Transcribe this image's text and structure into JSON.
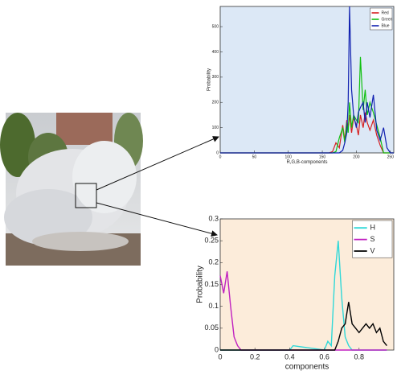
{
  "chart_data": [
    {
      "type": "line",
      "xlabel": "R,G,B-components",
      "ylabel": "Probability",
      "x": [
        0,
        150,
        160,
        165,
        170,
        175,
        180,
        183,
        186,
        188,
        190,
        193,
        196,
        200,
        203,
        206,
        210,
        213,
        216,
        220,
        225,
        230,
        235,
        240,
        245,
        250,
        255
      ],
      "series": [
        {
          "name": "Red",
          "color": "#d62020",
          "values": [
            0,
            0,
            0,
            5,
            40,
            20,
            110,
            50,
            130,
            100,
            150,
            80,
            140,
            110,
            70,
            150,
            100,
            160,
            120,
            90,
            130,
            70,
            30,
            0,
            0,
            0,
            0
          ]
        },
        {
          "name": "Green",
          "color": "#10c010",
          "values": [
            0,
            0,
            0,
            0,
            5,
            60,
            100,
            40,
            120,
            80,
            200,
            100,
            150,
            130,
            120,
            380,
            170,
            250,
            150,
            200,
            160,
            110,
            60,
            0,
            0,
            0,
            0
          ]
        },
        {
          "name": "Blue",
          "color": "#1020b0",
          "values": [
            0,
            0,
            0,
            0,
            0,
            0,
            10,
            40,
            80,
            200,
            580,
            250,
            150,
            100,
            160,
            180,
            200,
            120,
            200,
            140,
            230,
            90,
            50,
            100,
            20,
            0,
            0
          ]
        }
      ],
      "xlim": [
        0,
        255
      ],
      "xticks": [
        0,
        50,
        100,
        150,
        200,
        250
      ],
      "ylim": [
        0,
        580
      ],
      "yticks": [
        0,
        100,
        200,
        300,
        400,
        500
      ],
      "background": "#dce8f6",
      "legend": "upper right"
    },
    {
      "type": "line",
      "xlabel": "components",
      "ylabel": "Probability",
      "x": [
        0,
        0.02,
        0.04,
        0.06,
        0.08,
        0.1,
        0.12,
        0.2,
        0.4,
        0.42,
        0.6,
        0.62,
        0.64,
        0.66,
        0.68,
        0.7,
        0.72,
        0.74,
        0.76,
        0.78,
        0.8,
        0.82,
        0.84,
        0.86,
        0.88,
        0.9,
        0.92,
        0.94,
        0.96
      ],
      "series": [
        {
          "name": "H",
          "color": "#30d8d8",
          "values": [
            0,
            0,
            0,
            0,
            0,
            0,
            0,
            0,
            0,
            0.01,
            0,
            0.02,
            0.01,
            0.17,
            0.25,
            0.12,
            0.03,
            0.01,
            0,
            0,
            0,
            0,
            0,
            0,
            0,
            0,
            0,
            0,
            0
          ]
        },
        {
          "name": "S",
          "color": "#c020c0",
          "values": [
            0.17,
            0.13,
            0.18,
            0.1,
            0.03,
            0.01,
            0,
            0,
            0,
            0,
            0,
            0,
            0,
            0,
            0,
            0,
            0,
            0,
            0,
            0,
            0,
            0,
            0,
            0,
            0,
            0,
            0,
            0,
            0
          ]
        },
        {
          "name": "V",
          "color": "#000000",
          "values": [
            0,
            0,
            0,
            0,
            0,
            0,
            0,
            0,
            0,
            0,
            0,
            0,
            0,
            0,
            0.02,
            0.05,
            0.06,
            0.11,
            0.06,
            0.05,
            0.04,
            0.05,
            0.06,
            0.05,
            0.06,
            0.04,
            0.05,
            0.02,
            0.01
          ]
        }
      ],
      "xlim": [
        0,
        1
      ],
      "xticks": [
        0,
        0.2,
        0.4,
        0.6,
        0.8
      ],
      "ylim": [
        0,
        0.3
      ],
      "yticks": [
        0,
        0.05,
        0.1,
        0.15,
        0.2,
        0.25,
        0.3
      ],
      "background": "#fcecda",
      "legend": "upper right"
    }
  ]
}
